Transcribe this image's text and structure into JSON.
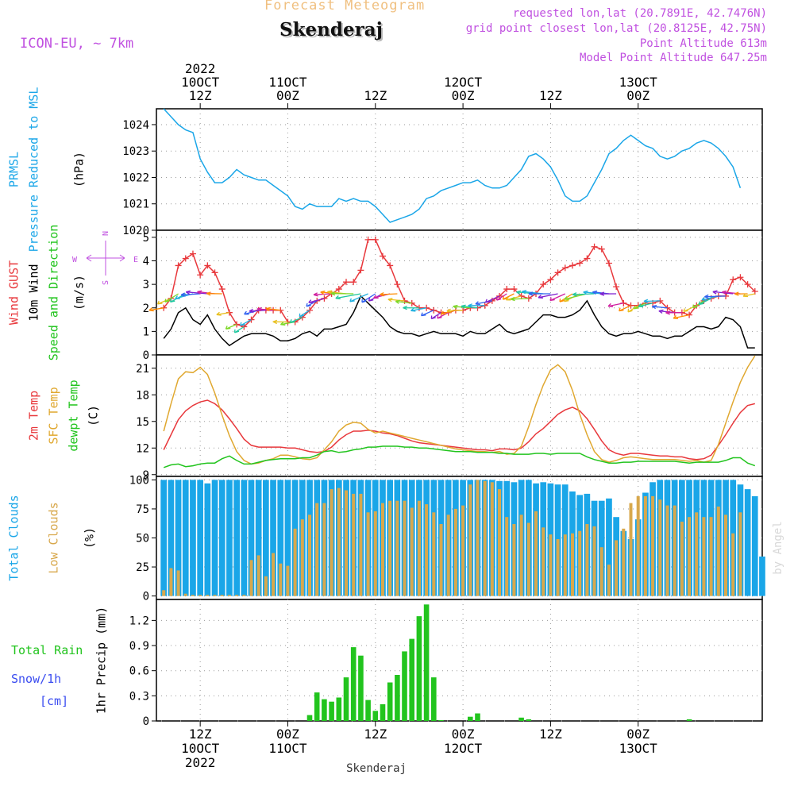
{
  "header": {
    "product": "Forecast Meteogram",
    "location": "Skenderaj",
    "model": "ICON-EU, ~ 7km",
    "requested": "requested lon,lat (20.7891E, 42.7476N)",
    "gridpoint": "grid point closest lon,lat (20.8125E, 42.75N)",
    "point_alt": "Point Altitude 613m",
    "model_alt": "Model Point Altitude 647.25m",
    "credit": "by Angel",
    "footer": "Skenderaj"
  },
  "colors": {
    "pressure": "#1aa6e8",
    "gust": "#e8383c",
    "wind": "#000000",
    "temp2m": "#e8383c",
    "sfc": "#e0a830",
    "dewpt": "#22c41e",
    "total_clouds": "#1aa6e8",
    "low_clouds": "#d8a84c",
    "rain": "#22c41e",
    "snow": "#3a4cf0",
    "purple": "#c050e0"
  },
  "time_axis": {
    "top_row1": [
      "2022",
      "",
      "",
      "",
      "",
      "",
      ""
    ],
    "top_row2": [
      "10OCT",
      "11OCT",
      "",
      "12OCT",
      "",
      "13OCT",
      ""
    ],
    "top_row3": [
      "12Z",
      "00Z",
      "12Z",
      "00Z",
      "12Z",
      "00Z",
      ""
    ],
    "bottom_row1": [
      "12Z",
      "00Z",
      "12Z",
      "00Z",
      "12Z",
      "00Z"
    ],
    "bottom_row2": [
      "10OCT",
      "11OCT",
      "",
      "12OCT",
      "",
      "13OCT"
    ],
    "bottom_row3": [
      "2022",
      "",
      "",
      "",
      "",
      ""
    ],
    "tick_hours": [
      12,
      24,
      36,
      48,
      60,
      72
    ]
  },
  "chart_data": [
    {
      "type": "line",
      "title": "Pressure Reduced to MSL",
      "ylabel_left": "PRMSL",
      "ylabel_left2": "Pressure Reduced to MSL",
      "unit": "(hPa)",
      "ylim": [
        1020,
        1024.6
      ],
      "yticks": [
        1020,
        1021,
        1022,
        1023,
        1024
      ],
      "x_hours_start": 7,
      "x_hours_step": 1,
      "series": [
        {
          "name": "PRMSL",
          "values": [
            1024.6,
            1024.3,
            1024.0,
            1023.8,
            1023.7,
            1022.7,
            1022.2,
            1021.8,
            1021.8,
            1022.0,
            1022.3,
            1022.1,
            1022.0,
            1021.9,
            1021.9,
            1021.7,
            1021.5,
            1021.3,
            1020.9,
            1020.8,
            1021.0,
            1020.9,
            1020.9,
            1020.9,
            1021.2,
            1021.1,
            1021.2,
            1021.1,
            1021.1,
            1020.9,
            1020.6,
            1020.3,
            1020.4,
            1020.5,
            1020.6,
            1020.8,
            1021.2,
            1021.3,
            1021.5,
            1021.6,
            1021.7,
            1021.8,
            1021.8,
            1021.9,
            1021.7,
            1021.6,
            1021.6,
            1021.7,
            1022.0,
            1022.3,
            1022.8,
            1022.9,
            1022.7,
            1022.4,
            1021.9,
            1021.3,
            1021.1,
            1021.1,
            1021.3,
            1021.8,
            1022.3,
            1022.9,
            1023.1,
            1023.4,
            1023.6,
            1023.4,
            1023.2,
            1023.1,
            1022.8,
            1022.7,
            1022.8,
            1023.0,
            1023.1,
            1023.3,
            1023.4,
            1023.3,
            1023.1,
            1022.8,
            1022.4,
            1021.6
          ]
        }
      ]
    },
    {
      "type": "line",
      "title": "Wind",
      "ylabel_left": "Wind GUST",
      "ylabel_left2": "10m Wind",
      "ylabel_left3": "Speed and Direction",
      "unit": "(m/s)",
      "compass": [
        "N",
        "E",
        "S",
        "W"
      ],
      "ylim": [
        0,
        5.3
      ],
      "yticks": [
        0,
        1,
        2,
        3,
        4,
        5
      ],
      "x_hours_start": 7,
      "x_hours_step": 1,
      "series": [
        {
          "name": "Wind GUST",
          "values": [
            2.0,
            2.4,
            3.8,
            4.1,
            4.3,
            3.4,
            3.8,
            3.5,
            2.8,
            1.8,
            1.3,
            1.2,
            1.5,
            1.9,
            1.9,
            1.9,
            1.9,
            1.4,
            1.4,
            1.6,
            1.9,
            2.3,
            2.4,
            2.6,
            2.8,
            3.1,
            3.1,
            3.6,
            4.9,
            4.9,
            4.2,
            3.8,
            3.0,
            2.3,
            2.2,
            2.0,
            2.0,
            1.9,
            1.8,
            1.8,
            1.9,
            1.9,
            2.0,
            2.0,
            2.1,
            2.3,
            2.5,
            2.8,
            2.8,
            2.5,
            2.4,
            2.6,
            3.0,
            3.2,
            3.5,
            3.7,
            3.8,
            3.9,
            4.1,
            4.6,
            4.5,
            3.9,
            2.9,
            2.2,
            2.1,
            2.1,
            2.2,
            2.2,
            2.3,
            2.0,
            1.8,
            1.8,
            1.7,
            2.1,
            2.3,
            2.4,
            2.5,
            2.5,
            3.2,
            3.3,
            3.0,
            2.7
          ]
        },
        {
          "name": "10m Wind",
          "values": [
            0.7,
            1.1,
            1.8,
            2.0,
            1.5,
            1.3,
            1.7,
            1.1,
            0.7,
            0.4,
            0.6,
            0.8,
            0.9,
            0.9,
            0.9,
            0.8,
            0.6,
            0.6,
            0.7,
            0.9,
            1.0,
            0.8,
            1.1,
            1.1,
            1.2,
            1.3,
            1.8,
            2.5,
            2.2,
            1.9,
            1.6,
            1.2,
            1.0,
            0.9,
            0.9,
            0.8,
            0.9,
            1.0,
            0.9,
            0.9,
            0.9,
            0.8,
            1.0,
            0.9,
            0.9,
            1.1,
            1.3,
            1.0,
            0.9,
            1.0,
            1.1,
            1.4,
            1.7,
            1.7,
            1.6,
            1.6,
            1.7,
            1.9,
            2.3,
            1.7,
            1.2,
            0.9,
            0.8,
            0.9,
            0.9,
            1.0,
            0.9,
            0.8,
            0.8,
            0.7,
            0.8,
            0.8,
            1.0,
            1.2,
            1.2,
            1.1,
            1.2,
            1.6,
            1.5,
            1.2,
            0.3,
            0.3
          ]
        }
      ]
    },
    {
      "type": "line",
      "title": "Temperature",
      "ylabel_left": "2m Temp",
      "ylabel_left2": "SFC Temp",
      "ylabel_left3": "dewpt Temp",
      "unit": "(C)",
      "ylim": [
        8.8,
        22.5
      ],
      "yticks": [
        9,
        12,
        15,
        18,
        21
      ],
      "x_hours_start": 7,
      "x_hours_step": 1,
      "series": [
        {
          "name": "2m Temp",
          "values": [
            11.8,
            13.5,
            15.2,
            16.2,
            16.8,
            17.2,
            17.4,
            17.0,
            16.3,
            15.3,
            14.2,
            13.0,
            12.3,
            12.1,
            12.1,
            12.1,
            12.1,
            12.0,
            12.0,
            11.8,
            11.6,
            11.5,
            11.6,
            12.1,
            12.9,
            13.5,
            13.9,
            13.9,
            14.0,
            13.9,
            13.7,
            13.6,
            13.4,
            13.1,
            12.8,
            12.6,
            12.5,
            12.4,
            12.3,
            12.2,
            12.1,
            12.0,
            11.9,
            11.8,
            11.8,
            11.7,
            11.9,
            11.9,
            11.8,
            12.0,
            12.7,
            13.6,
            14.2,
            15.0,
            15.8,
            16.3,
            16.6,
            16.2,
            15.3,
            14.1,
            12.8,
            11.8,
            11.4,
            11.2,
            11.4,
            11.4,
            11.3,
            11.2,
            11.1,
            11.1,
            11.0,
            11.0,
            10.8,
            10.7,
            10.8,
            11.2,
            12.3,
            13.5,
            14.8,
            16.0,
            16.8,
            17.0
          ]
        },
        {
          "name": "SFC Temp",
          "values": [
            13.9,
            17.0,
            19.8,
            20.6,
            20.5,
            21.1,
            20.3,
            18.2,
            15.7,
            13.4,
            11.6,
            10.6,
            10.2,
            10.3,
            10.6,
            10.8,
            11.2,
            11.2,
            11.0,
            10.8,
            10.7,
            10.9,
            11.8,
            12.7,
            13.9,
            14.6,
            14.9,
            14.8,
            14.1,
            13.7,
            13.9,
            13.7,
            13.5,
            13.3,
            13.1,
            12.9,
            12.7,
            12.5,
            12.3,
            12.1,
            11.9,
            11.8,
            11.7,
            11.6,
            11.6,
            11.5,
            11.6,
            11.3,
            11.4,
            12.2,
            14.4,
            16.9,
            19.1,
            20.8,
            21.4,
            20.6,
            18.5,
            15.8,
            13.5,
            11.6,
            10.7,
            10.4,
            10.6,
            10.9,
            11.0,
            10.9,
            10.8,
            10.7,
            10.7,
            10.7,
            10.7,
            10.6,
            10.5,
            10.6,
            10.4,
            10.6,
            12.4,
            14.8,
            17.2,
            19.4,
            21.1,
            22.4
          ]
        },
        {
          "name": "dewpt Temp",
          "values": [
            9.8,
            10.1,
            10.2,
            9.9,
            10.0,
            10.2,
            10.3,
            10.3,
            10.8,
            11.1,
            10.6,
            10.2,
            10.2,
            10.4,
            10.6,
            10.7,
            10.8,
            10.8,
            10.8,
            10.9,
            10.9,
            11.2,
            11.6,
            11.7,
            11.5,
            11.6,
            11.8,
            11.9,
            12.1,
            12.1,
            12.2,
            12.2,
            12.2,
            12.1,
            12.1,
            12.0,
            12.0,
            11.9,
            11.8,
            11.7,
            11.6,
            11.6,
            11.6,
            11.5,
            11.5,
            11.5,
            11.4,
            11.4,
            11.3,
            11.3,
            11.3,
            11.4,
            11.4,
            11.3,
            11.4,
            11.4,
            11.4,
            11.4,
            11.0,
            10.7,
            10.5,
            10.3,
            10.3,
            10.4,
            10.4,
            10.5,
            10.5,
            10.5,
            10.5,
            10.5,
            10.5,
            10.4,
            10.3,
            10.4,
            10.4,
            10.4,
            10.4,
            10.6,
            10.9,
            10.9,
            10.3,
            10.0
          ]
        }
      ]
    },
    {
      "type": "bar",
      "title": "Clouds",
      "ylabel_left": "Total Clouds",
      "ylabel_left2": "Low Clouds",
      "unit": "(%)",
      "ylim": [
        -3,
        103
      ],
      "yticks": [
        0,
        25,
        50,
        75,
        100
      ],
      "x_hours_start": 7,
      "x_hours_step": 1,
      "series": [
        {
          "name": "Total Clouds",
          "values": [
            100,
            100,
            100,
            100,
            100,
            100,
            97,
            100,
            100,
            100,
            100,
            100,
            100,
            100,
            100,
            100,
            100,
            100,
            100,
            100,
            100,
            100,
            100,
            100,
            100,
            100,
            100,
            100,
            100,
            100,
            100,
            100,
            100,
            100,
            100,
            100,
            100,
            100,
            100,
            100,
            100,
            100,
            100,
            100,
            100,
            100,
            99,
            99,
            98,
            100,
            100,
            97,
            98,
            97,
            96,
            96,
            90,
            87,
            88,
            82,
            82,
            84,
            68,
            56,
            49,
            66,
            89,
            98,
            100,
            100,
            100,
            100,
            100,
            100,
            100,
            100,
            100,
            100,
            100,
            96,
            92,
            86,
            34
          ]
        },
        {
          "name": "Low Clouds",
          "values": [
            5,
            24,
            22,
            2,
            1,
            1,
            1,
            1,
            1,
            1,
            1,
            1,
            31,
            35,
            17,
            37,
            28,
            26,
            58,
            66,
            70,
            80,
            80,
            92,
            93,
            91,
            88,
            88,
            72,
            73,
            80,
            82,
            82,
            82,
            76,
            82,
            79,
            72,
            62,
            70,
            75,
            78,
            96,
            100,
            99,
            98,
            92,
            68,
            62,
            70,
            63,
            73,
            59,
            53,
            49,
            53,
            54,
            56,
            62,
            60,
            42,
            27,
            48,
            58,
            80,
            86,
            86,
            86,
            83,
            78,
            78,
            64,
            68,
            72,
            68,
            68,
            77,
            70,
            54,
            72,
            0,
            0
          ]
        }
      ]
    },
    {
      "type": "bar",
      "title": "1hr Precip",
      "ylabel_left": "Total  Rain",
      "ylabel_left2": "Snow/1h",
      "ylabel_left3": "[cm]",
      "unit": "1hr Precip (mm)",
      "ylim": [
        0,
        1.45
      ],
      "yticks": [
        0,
        0.3,
        0.6,
        0.9,
        1.2
      ],
      "x_hours_start": 7,
      "x_hours_step": 1,
      "series": [
        {
          "name": "Total Rain",
          "values": [
            0,
            0,
            0,
            0,
            0,
            0,
            0,
            0,
            0,
            0,
            0,
            0,
            0,
            0,
            0,
            0,
            0,
            0,
            0,
            0,
            0.07,
            0.34,
            0.26,
            0.23,
            0.28,
            0.52,
            0.88,
            0.78,
            0.25,
            0.12,
            0.2,
            0.46,
            0.55,
            0.83,
            0.98,
            1.25,
            1.39,
            0.52,
            0.01,
            0,
            0,
            0,
            0.05,
            0.09,
            0,
            0,
            0,
            0,
            0,
            0.04,
            0.02,
            0,
            0,
            0,
            0,
            0,
            0,
            0,
            0,
            0,
            0,
            0,
            0,
            0,
            0,
            0,
            0,
            0,
            0,
            0,
            0,
            0,
            0.02,
            0,
            0,
            0,
            0,
            0,
            0,
            0,
            0,
            0
          ]
        }
      ]
    }
  ]
}
